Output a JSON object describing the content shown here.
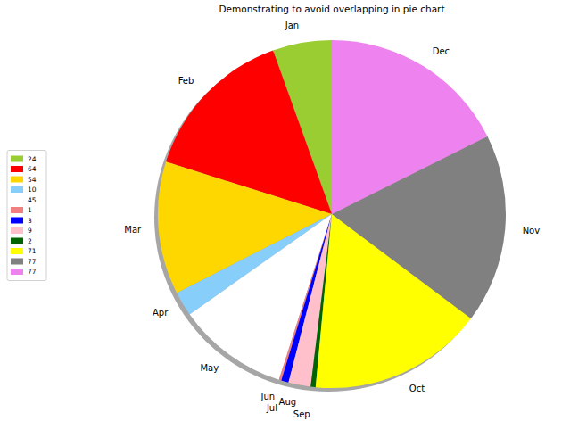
{
  "chart_data": {
    "type": "pie",
    "title": "Demonstrating to avoid overlapping in pie chart",
    "categories": [
      "Jan",
      "Feb",
      "Mar",
      "Apr",
      "May",
      "Jun",
      "Jul",
      "Aug",
      "Sep",
      "Oct",
      "Nov",
      "Dec"
    ],
    "values": [
      24,
      64,
      54,
      10,
      45,
      1,
      3,
      9,
      2,
      71,
      77,
      77
    ],
    "colors": [
      "#9acd32",
      "#ff0000",
      "#ffd700",
      "#87cefa",
      "#ffffff",
      "#f08080",
      "#0000ff",
      "#ffc0cb",
      "#006400",
      "#ffff00",
      "#808080",
      "#ee82ee"
    ],
    "legend": "center left"
  }
}
